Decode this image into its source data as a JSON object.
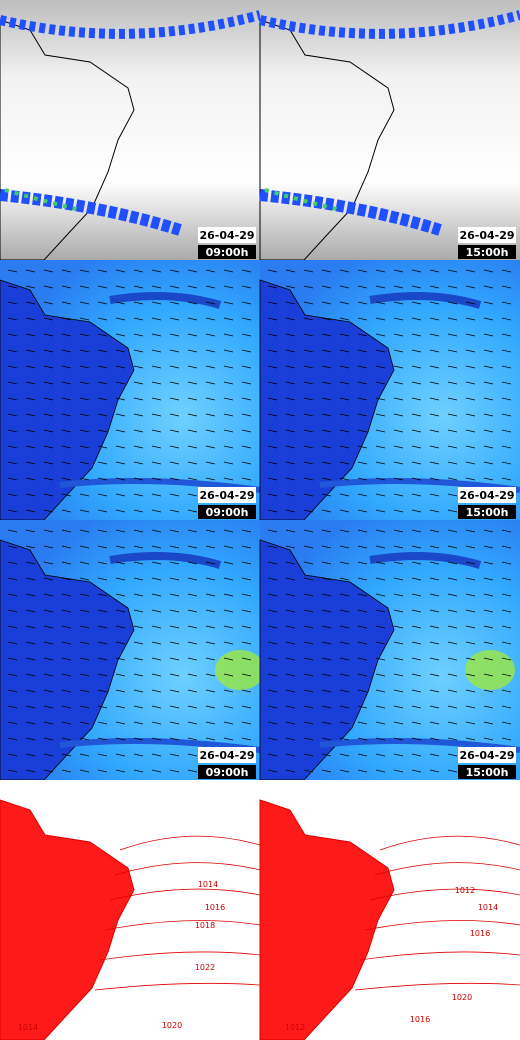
{
  "panels": [
    {
      "date": "26-04-29",
      "time": "09:00h"
    },
    {
      "date": "26-04-29",
      "time": "15:00h"
    },
    {
      "date": "26-04-29",
      "time": "09:00h"
    },
    {
      "date": "26-04-29",
      "time": "15:00h"
    },
    {
      "date": "26-04-29",
      "time": "09:00h"
    },
    {
      "date": "26-04-29",
      "time": "15:00h"
    }
  ],
  "isobars": [
    {
      "labels": [
        "1014",
        "1016",
        "1018",
        "1022",
        "1020",
        "1014"
      ]
    },
    {
      "labels": [
        "1012",
        "1014",
        "1016",
        "1020",
        "1016",
        "1012"
      ]
    }
  ]
}
